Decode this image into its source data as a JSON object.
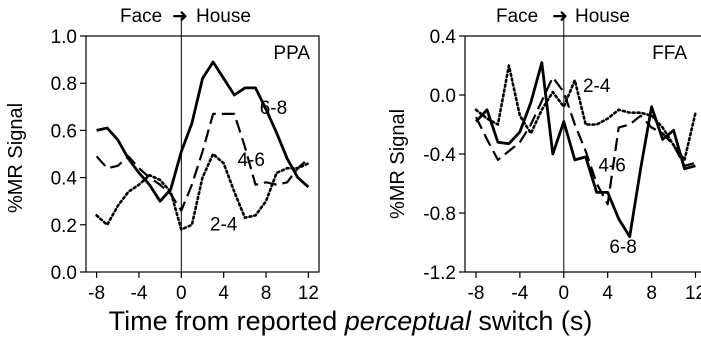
{
  "figure": {
    "xlabel_prefix": "Time from reported ",
    "xlabel_italic": "perceptual",
    "xlabel_suffix": " switch (s)"
  },
  "chart_data": [
    {
      "type": "line",
      "panel_label": "PPA",
      "header_left": "Face",
      "header_right": "House",
      "ylabel": "",
      "xlim": [
        -9,
        13
      ],
      "ylim": [
        0,
        1.0
      ],
      "xticks": [
        -8,
        -4,
        0,
        4,
        8,
        12
      ],
      "yticks": [
        0.0,
        0.2,
        0.4,
        0.6,
        0.8,
        1.0
      ],
      "ytick_labels": [
        "0.0",
        "0.2",
        "0.4",
        "0.6",
        "0.8",
        "1.0"
      ],
      "xtick_labels": [
        "-8",
        "-4",
        "0",
        "4",
        "8",
        "12"
      ],
      "vline": 0,
      "series": [
        {
          "name": "6-8",
          "style": "solid",
          "x": [
            -8,
            -7,
            -6,
            -5,
            -4,
            -3,
            -2,
            -1,
            0,
            1,
            2,
            3,
            4,
            5,
            6,
            7,
            8,
            9,
            10,
            11,
            12
          ],
          "y": [
            0.6,
            0.61,
            0.56,
            0.48,
            0.42,
            0.37,
            0.3,
            0.35,
            0.51,
            0.63,
            0.82,
            0.89,
            0.82,
            0.75,
            0.78,
            0.78,
            0.69,
            0.59,
            0.48,
            0.4,
            0.36
          ]
        },
        {
          "name": "4-6",
          "style": "dashed",
          "x": [
            -8,
            -7,
            -6,
            -5,
            -4,
            -3,
            -2,
            -1,
            0,
            1,
            2,
            3,
            4,
            5,
            6,
            7,
            8,
            9,
            10,
            11,
            12
          ],
          "y": [
            0.49,
            0.44,
            0.45,
            0.49,
            0.44,
            0.4,
            0.37,
            0.33,
            0.26,
            0.37,
            0.51,
            0.67,
            0.67,
            0.67,
            0.53,
            0.37,
            0.38,
            0.37,
            0.38,
            0.44,
            0.48
          ]
        },
        {
          "name": "2-4",
          "style": "dotted",
          "x": [
            -8,
            -7,
            -6,
            -5,
            -4,
            -3,
            -2,
            -1,
            0,
            1,
            2,
            3,
            4,
            5,
            6,
            7,
            8,
            9,
            10,
            11,
            12
          ],
          "y": [
            0.24,
            0.2,
            0.28,
            0.34,
            0.37,
            0.41,
            0.39,
            0.34,
            0.18,
            0.2,
            0.4,
            0.5,
            0.46,
            0.34,
            0.23,
            0.24,
            0.3,
            0.42,
            0.44,
            0.44,
            0.46
          ]
        }
      ],
      "annotations": [
        {
          "text": "6-8",
          "x": 8.7,
          "y": 0.67
        },
        {
          "text": "4-6",
          "x": 6.6,
          "y": 0.45
        },
        {
          "text": "2-4",
          "x": 4.0,
          "y": 0.175
        }
      ]
    },
    {
      "type": "line",
      "panel_label": "FFA",
      "header_left": "Face",
      "header_right": "House",
      "ylabel": "%MR Signal",
      "xlim": [
        -9,
        12.5
      ],
      "ylim": [
        -1.2,
        0.4
      ],
      "xticks": [
        -8,
        -4,
        0,
        4,
        8,
        12
      ],
      "yticks": [
        -1.2,
        -0.8,
        -0.4,
        0.0,
        0.4
      ],
      "ytick_labels": [
        "-1.2",
        "-0.8",
        "-0.4",
        "0.0",
        "0.4"
      ],
      "xtick_labels": [
        "-8",
        "-4",
        "0",
        "4",
        "8",
        "12"
      ],
      "vline": 0,
      "series": [
        {
          "name": "6-8",
          "style": "solid",
          "x": [
            -8,
            -7,
            -6,
            -5,
            -4,
            -3,
            -2,
            -1,
            0,
            1,
            2,
            3,
            4,
            5,
            6,
            7,
            8,
            9,
            10,
            11,
            12
          ],
          "y": [
            -0.18,
            -0.1,
            -0.32,
            -0.33,
            -0.25,
            -0.05,
            0.22,
            -0.4,
            -0.18,
            -0.44,
            -0.42,
            -0.66,
            -0.66,
            -0.84,
            -0.96,
            -0.5,
            -0.08,
            -0.3,
            -0.24,
            -0.5,
            -0.48
          ]
        },
        {
          "name": "4-6",
          "style": "dashed",
          "x": [
            -8,
            -7,
            -6,
            -5,
            -4,
            -3,
            -2,
            -1,
            0,
            1,
            2,
            3,
            4,
            5,
            6,
            7,
            8,
            9,
            10,
            11,
            12
          ],
          "y": [
            -0.15,
            -0.3,
            -0.44,
            -0.38,
            -0.32,
            -0.2,
            -0.04,
            0.12,
            0.02,
            -0.2,
            -0.38,
            -0.6,
            -0.74,
            -0.22,
            -0.2,
            -0.14,
            -0.22,
            -0.26,
            -0.34,
            -0.48,
            -0.46
          ]
        },
        {
          "name": "2-4",
          "style": "dotted",
          "x": [
            -8,
            -7,
            -6,
            -5,
            -4,
            -3,
            -2,
            -1,
            0,
            1,
            2,
            3,
            4,
            5,
            6,
            7,
            8,
            9,
            10,
            11,
            12
          ],
          "y": [
            -0.1,
            -0.16,
            -0.2,
            0.2,
            -0.14,
            -0.26,
            -0.1,
            0.02,
            -0.08,
            0.1,
            -0.2,
            -0.2,
            -0.16,
            -0.1,
            -0.12,
            -0.12,
            -0.14,
            -0.22,
            -0.34,
            -0.44,
            -0.12
          ]
        }
      ],
      "annotations": [
        {
          "text": "2-4",
          "x": 3.0,
          "y": 0.02
        },
        {
          "text": "4-6",
          "x": 4.4,
          "y": -0.52
        },
        {
          "text": "6-8",
          "x": 5.4,
          "y": -1.07
        }
      ]
    }
  ]
}
